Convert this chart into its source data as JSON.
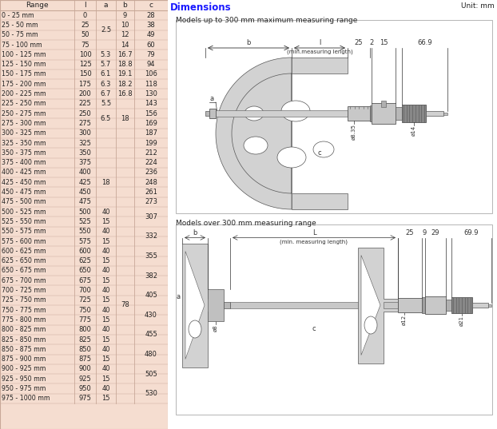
{
  "title": "Dimensions",
  "title_color": "#1a1aff",
  "unit_text": "Unit: mm",
  "table_header": [
    "Range",
    "l",
    "a",
    "b",
    "c"
  ],
  "table_bg": "#f5ddd0",
  "border_color": "#c8a898",
  "text_color": "#222222",
  "table_rows": [
    [
      "0 - 25 mm",
      "0",
      "",
      "9",
      "28"
    ],
    [
      "25 - 50 mm",
      "25",
      "2.5",
      "10",
      "38"
    ],
    [
      "50 - 75 mm",
      "50",
      "",
      "12",
      "49"
    ],
    [
      "75 - 100 mm",
      "75",
      "",
      "14",
      "60"
    ],
    [
      "100 - 125 mm",
      "100",
      "5.3",
      "16.7",
      "79"
    ],
    [
      "125 - 150 mm",
      "125",
      "5.7",
      "18.8",
      "94"
    ],
    [
      "150 - 175 mm",
      "150",
      "6.1",
      "19.1",
      "106"
    ],
    [
      "175 - 200 mm",
      "175",
      "6.3",
      "18.2",
      "118"
    ],
    [
      "200 - 225 mm",
      "200",
      "6.7",
      "16.8",
      "130"
    ],
    [
      "225 - 250 mm",
      "225",
      "5.5",
      "",
      "143"
    ],
    [
      "250 - 275 mm",
      "250",
      "6.5",
      "18",
      "156"
    ],
    [
      "275 - 300 mm",
      "275",
      "",
      "",
      "169"
    ],
    [
      "300 - 325 mm",
      "300",
      "",
      "",
      "187"
    ],
    [
      "325 - 350 mm",
      "325",
      "",
      "",
      "199"
    ],
    [
      "350 - 375 mm",
      "350",
      "",
      "",
      "212"
    ],
    [
      "375 - 400 mm",
      "375",
      "18",
      "",
      "224"
    ],
    [
      "400 - 425 mm",
      "400",
      "",
      "",
      "236"
    ],
    [
      "425 - 450 mm",
      "425",
      "",
      "",
      "248"
    ],
    [
      "450 - 475 mm",
      "450",
      "",
      "",
      "261"
    ],
    [
      "475 - 500 mm",
      "475",
      "",
      "",
      "273"
    ],
    [
      "500 - 525 mm",
      "500",
      "40",
      "",
      "307"
    ],
    [
      "525 - 550 mm",
      "525",
      "15",
      "",
      ""
    ],
    [
      "550 - 575 mm",
      "550",
      "40",
      "",
      "332"
    ],
    [
      "575 - 600 mm",
      "575",
      "15",
      "",
      ""
    ],
    [
      "600 - 625 mm",
      "600",
      "40",
      "",
      "355"
    ],
    [
      "625 - 650 mm",
      "625",
      "15",
      "78",
      ""
    ],
    [
      "650 - 675 mm",
      "650",
      "40",
      "",
      "382"
    ],
    [
      "675 - 700 mm",
      "675",
      "15",
      "",
      ""
    ],
    [
      "700 - 725 mm",
      "700",
      "40",
      "",
      "405"
    ],
    [
      "725 - 750 mm",
      "725",
      "15",
      "",
      ""
    ],
    [
      "750 - 775 mm",
      "750",
      "40",
      "",
      "430"
    ],
    [
      "775 - 800 mm",
      "775",
      "15",
      "",
      ""
    ],
    [
      "800 - 825 mm",
      "800",
      "40",
      "",
      "455"
    ],
    [
      "825 - 850 mm",
      "825",
      "15",
      "",
      ""
    ],
    [
      "850 - 875 mm",
      "850",
      "40",
      "",
      "480"
    ],
    [
      "875 - 900 mm",
      "875",
      "15",
      "",
      ""
    ],
    [
      "900 - 925 mm",
      "900",
      "40",
      "",
      "505"
    ],
    [
      "925 - 950 mm",
      "925",
      "15",
      "",
      ""
    ],
    [
      "950 - 975 mm",
      "950",
      "40",
      "",
      "530"
    ],
    [
      "975 - 1000 mm",
      "975",
      "15",
      "",
      ""
    ]
  ],
  "a_merge_25": [
    0,
    3
  ],
  "a_merge_65": [
    10,
    11
  ],
  "a_merge_18": [
    15,
    19
  ],
  "b_merge_18": [
    10,
    11
  ],
  "b_merge_78": [
    20,
    39
  ],
  "c_pairs": [
    [
      20,
      21,
      "307"
    ],
    [
      22,
      23,
      "332"
    ],
    [
      24,
      25,
      "355"
    ],
    [
      26,
      27,
      "382"
    ],
    [
      28,
      29,
      "405"
    ],
    [
      30,
      31,
      "430"
    ],
    [
      32,
      33,
      "455"
    ],
    [
      34,
      35,
      "480"
    ],
    [
      36,
      37,
      "505"
    ],
    [
      38,
      39,
      "530"
    ]
  ],
  "diagram1_title": "Models up to 300 mm maximum measuring range",
  "diagram2_title": "Models over 300 mm measuring range",
  "d1_labels": {
    "b": "b",
    "l": "l",
    "25": "25",
    "2": "2",
    "15": "15",
    "66.9": "66.9",
    "min_meas": "(min.measuring length)",
    "a": "a",
    "c": "c",
    "d835": "ø8.35",
    "d14": "ø14"
  },
  "d2_labels": {
    "b": "b",
    "l": "L",
    "25": "25",
    "9": "9",
    "29": "29",
    "69.9": "69.9",
    "min_meas": "(min. measuring length)",
    "a": "a",
    "c": "c",
    "d8": "ø8",
    "d12": "ø12",
    "d21": "ø21"
  },
  "frame_color": "#d2d2d2",
  "dark_color": "#555555",
  "white_color": "#ffffff",
  "diag_bg": "#f5f5f5"
}
